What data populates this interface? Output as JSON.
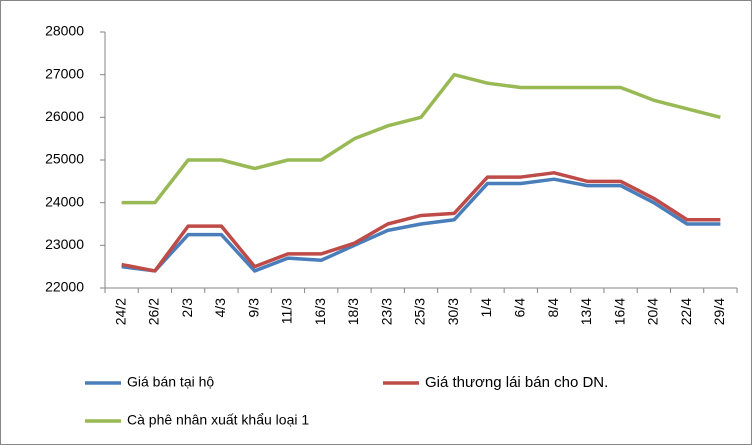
{
  "chart_data": {
    "type": "line",
    "categories": [
      "24/2",
      "26/2",
      "2/3",
      "4/3",
      "9/3",
      "11/3",
      "16/3",
      "18/3",
      "23/3",
      "25/3",
      "30/3",
      "1/4",
      "6/4",
      "8/4",
      "13/4",
      "16/4",
      "20/4",
      "22/4",
      "29/4"
    ],
    "series": [
      {
        "name": "Giá bán tại hộ",
        "color": "#4a7ebb",
        "values": [
          22500,
          22400,
          23250,
          23250,
          22400,
          22700,
          22650,
          23000,
          23350,
          23500,
          23600,
          24450,
          24450,
          24550,
          24400,
          24400,
          24000,
          23500,
          23500
        ]
      },
      {
        "name": "Giá thương lái bán cho DN.",
        "color": "#be4b48",
        "values": [
          22550,
          22400,
          23450,
          23450,
          22500,
          22800,
          22800,
          23050,
          23500,
          23700,
          23750,
          24600,
          24600,
          24700,
          24500,
          24500,
          24100,
          23600,
          23600
        ]
      },
      {
        "name": "Cà phê nhân xuất khẩu loại 1",
        "color": "#98b954",
        "values": [
          24000,
          24000,
          25000,
          25000,
          24800,
          25000,
          25000,
          25500,
          25800,
          26000,
          27000,
          26800,
          26700,
          26700,
          26700,
          26700,
          26400,
          26200,
          26000
        ]
      }
    ],
    "ylim": [
      22000,
      28000
    ],
    "yticks": [
      22000,
      23000,
      24000,
      25000,
      26000,
      27000,
      28000
    ],
    "grid": false,
    "legend": "bottom"
  }
}
